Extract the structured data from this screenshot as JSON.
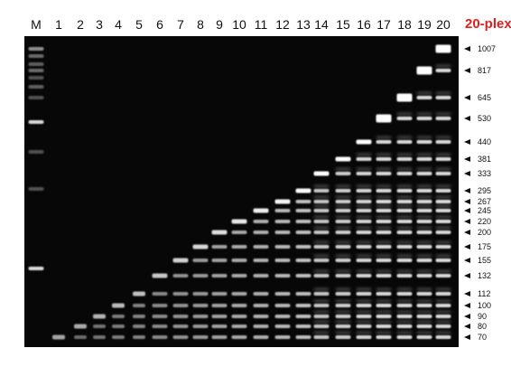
{
  "lanes": [
    "M",
    "1",
    "2",
    "3",
    "4",
    "5",
    "6",
    "7",
    "8",
    "9",
    "10",
    "11",
    "12",
    "13",
    "14",
    "15",
    "16",
    "17",
    "18",
    "19",
    "20"
  ],
  "plex_label": "20-plex",
  "plex_color": "#e02020",
  "sizes": [
    "1007",
    "817",
    "645",
    "530",
    "440",
    "381",
    "333",
    "295",
    "267",
    "245",
    "220",
    "200",
    "175",
    "155",
    "132",
    "112",
    "100",
    "90",
    "80",
    "70"
  ],
  "gel_background": "#070707"
}
